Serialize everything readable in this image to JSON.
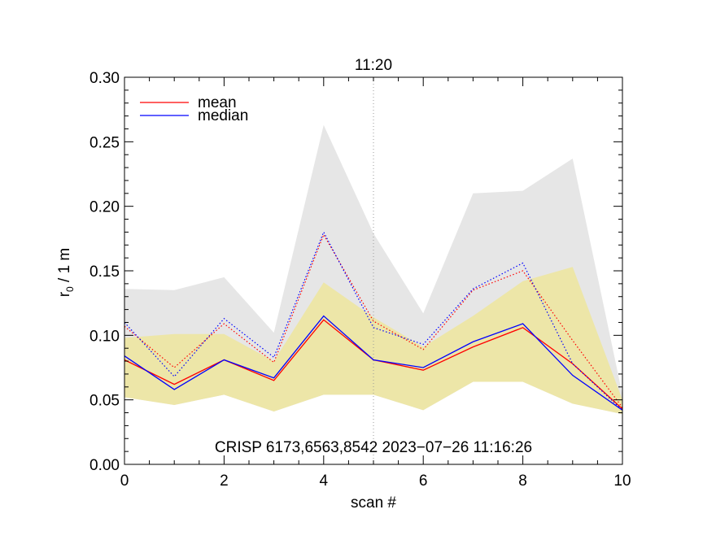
{
  "chart_data": {
    "type": "line",
    "title": "11:20",
    "xlabel": "scan #",
    "ylabel_main": "r",
    "ylabel_sub": "0",
    "ylabel_rest": " / 1 m",
    "xlim": [
      0,
      10
    ],
    "ylim": [
      0,
      0.3
    ],
    "xticks": [
      "0",
      "2",
      "4",
      "6",
      "8",
      "10"
    ],
    "yticks": [
      "0.00",
      "0.05",
      "0.10",
      "0.15",
      "0.20",
      "0.25",
      "0.30"
    ],
    "marker_x": 5,
    "annotation": "CRISP 6173,6563,8542 2023−07−26 11:16:26",
    "legend": [
      {
        "label": "mean",
        "color": "#ff0000"
      },
      {
        "label": "median",
        "color": "#0000ff"
      }
    ],
    "x": [
      0,
      1,
      2,
      3,
      4,
      5,
      6,
      7,
      8,
      9,
      10
    ],
    "envelope_gray": {
      "color": "#e6e6e6",
      "upper": [
        0.136,
        0.135,
        0.145,
        0.102,
        0.263,
        0.179,
        0.117,
        0.21,
        0.212,
        0.237,
        0.054
      ],
      "lower": [
        0.052,
        0.046,
        0.054,
        0.041,
        0.054,
        0.054,
        0.042,
        0.064,
        0.064,
        0.047,
        0.039
      ]
    },
    "envelope_yellow": {
      "color": "#ede6a8",
      "upper": [
        0.098,
        0.101,
        0.101,
        0.08,
        0.141,
        0.114,
        0.091,
        0.115,
        0.142,
        0.153,
        0.05
      ],
      "lower": [
        0.052,
        0.046,
        0.054,
        0.041,
        0.054,
        0.054,
        0.042,
        0.064,
        0.064,
        0.047,
        0.039
      ]
    },
    "series": [
      {
        "name": "mean",
        "color": "#ff0000",
        "style": "solid",
        "values": [
          0.081,
          0.062,
          0.081,
          0.065,
          0.112,
          0.081,
          0.073,
          0.091,
          0.106,
          0.078,
          0.043
        ]
      },
      {
        "name": "median",
        "color": "#0000ff",
        "style": "solid",
        "values": [
          0.084,
          0.058,
          0.081,
          0.067,
          0.115,
          0.081,
          0.075,
          0.095,
          0.109,
          0.069,
          0.042
        ]
      },
      {
        "name": "mean dotted",
        "color": "#ff0000",
        "style": "dotted",
        "values": [
          0.107,
          0.075,
          0.109,
          0.079,
          0.178,
          0.111,
          0.089,
          0.135,
          0.15,
          0.096,
          0.044
        ]
      },
      {
        "name": "median dotted",
        "color": "#0000ff",
        "style": "dotted",
        "values": [
          0.11,
          0.068,
          0.113,
          0.083,
          0.18,
          0.106,
          0.093,
          0.136,
          0.156,
          0.078,
          0.042
        ]
      }
    ]
  }
}
